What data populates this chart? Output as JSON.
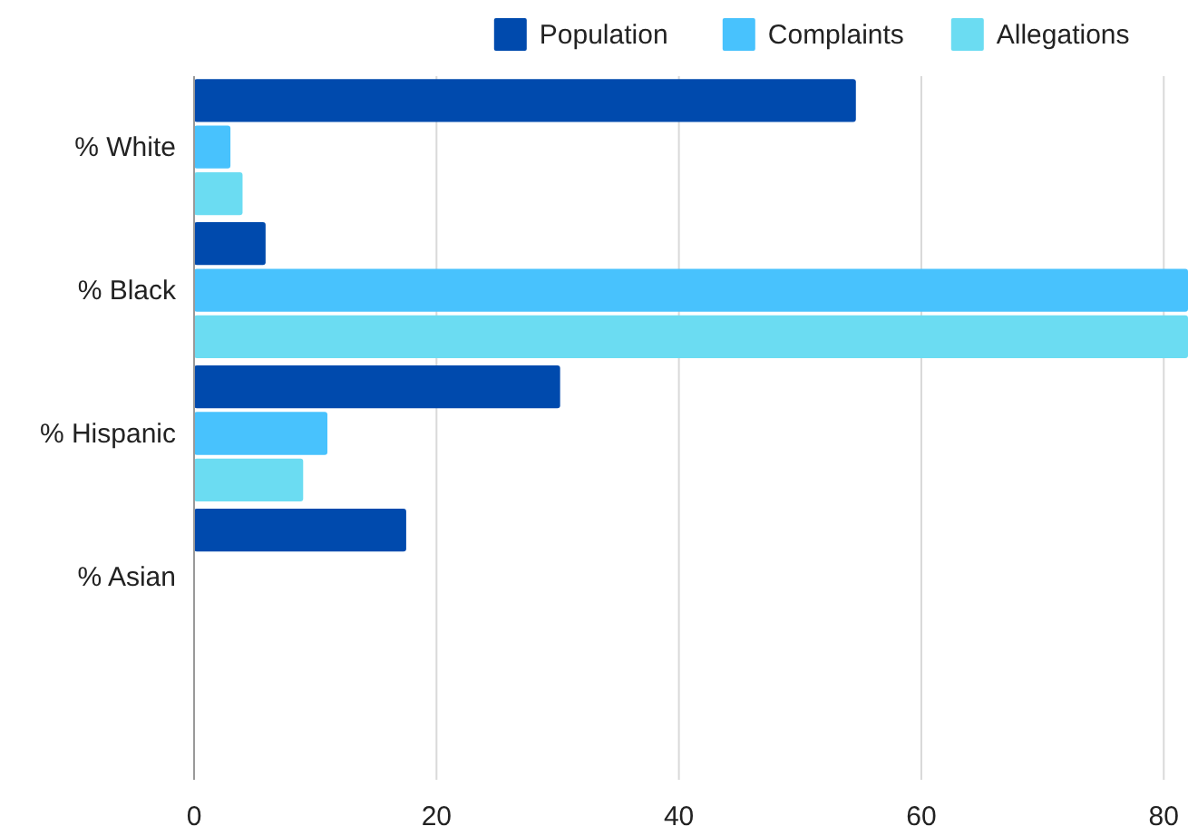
{
  "chart_data": {
    "type": "bar",
    "orientation": "horizontal",
    "categories": [
      "% White",
      "% Black",
      "% Hispanic",
      "% Asian",
      null
    ],
    "series": [
      {
        "name": "Population",
        "color": "#004aad",
        "values": [
          54.6,
          5.9,
          30.2,
          17.5,
          null
        ]
      },
      {
        "name": "Complaints",
        "color": "#48c2fd",
        "values": [
          3.0,
          82,
          11.0,
          null,
          null
        ]
      },
      {
        "name": "Allegations",
        "color": "#6bdcf2",
        "values": [
          4.0,
          82,
          9.0,
          null,
          null
        ]
      }
    ],
    "xlim": [
      0,
      82
    ],
    "xticks": [
      0,
      20,
      40,
      60,
      80
    ],
    "grid": "x",
    "legend": "top right"
  }
}
